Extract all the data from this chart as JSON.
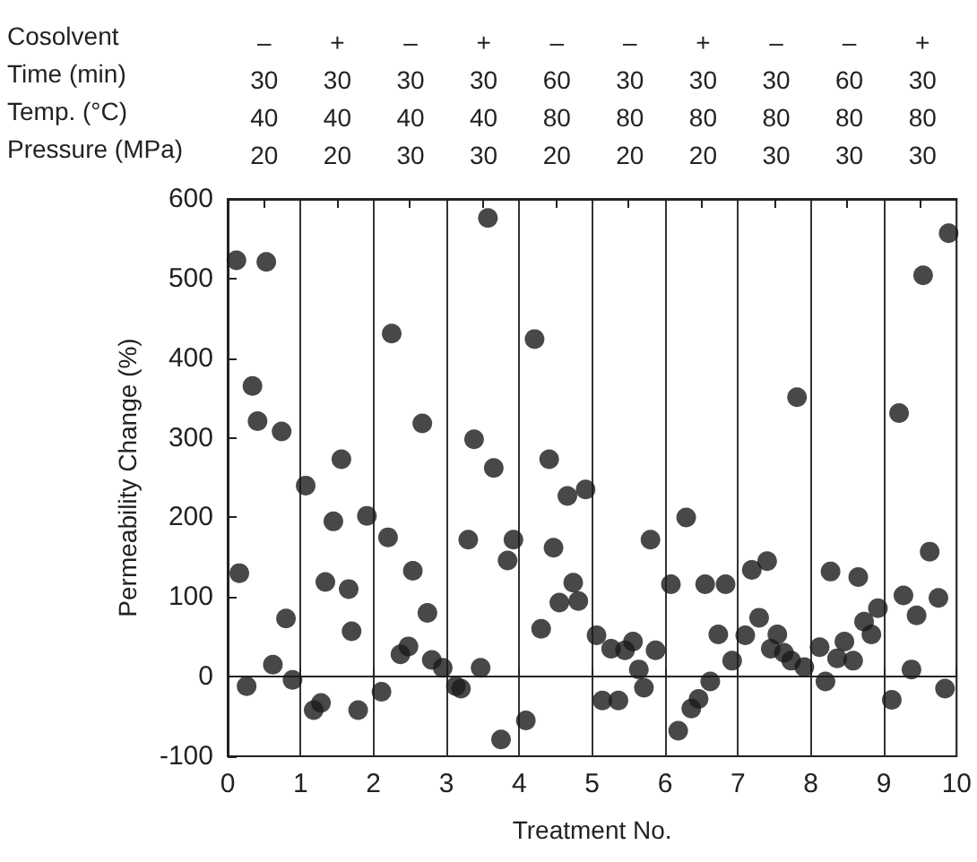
{
  "chart_data": {
    "type": "scatter",
    "xlabel": "Treatment No.",
    "ylabel": "Permeability Change (%)",
    "annotations": [
      "Cosolvent",
      "Time (min)",
      "Temp. (°C)",
      "Pressure (MPa)",
      {
        "text": "–\n30\n40\n20",
        "x": 0.5
      },
      {
        "text": "+\n30\n40\n20",
        "x": 1.5
      },
      {
        "text": "–\n30\n40\n30",
        "x": 2.5
      },
      {
        "text": "+\n30\n40\n30",
        "x": 3.5
      },
      {
        "text": "–\n60\n80\n20",
        "x": 4.5
      },
      {
        "text": "–\n30\n80\n20",
        "x": 5.5
      },
      {
        "text": "+\n30\n80\n20",
        "x": 6.5
      },
      {
        "text": "–\n30\n80\n30",
        "x": 7.5
      },
      {
        "text": "–\n60\n80\n30",
        "x": 8.5
      },
      {
        "text": "+\n30\n80\n30",
        "x": 9.5
      }
    ],
    "xlim": [
      0,
      10
    ],
    "xticks": [
      0,
      1,
      2,
      3,
      4,
      5,
      6,
      7,
      8,
      9,
      10
    ],
    "ylim": [
      -100,
      600
    ],
    "yticks": [
      -100,
      0,
      100,
      200,
      300,
      400,
      500,
      600
    ],
    "grid": "x",
    "marker": "circle",
    "series": [
      {
        "color": "#1a1a1a",
        "x": [
          0.12,
          0.53,
          0.16,
          0.34,
          0.41,
          0.74,
          0.26,
          0.62,
          0.8,
          0.89,
          1.07,
          1.18,
          1.28,
          1.34,
          1.45,
          1.56,
          1.66,
          1.7,
          1.79,
          1.91,
          2.11,
          2.2,
          2.25,
          2.37,
          2.48,
          2.54,
          2.67,
          2.74,
          2.8,
          2.95,
          3.13,
          3.2,
          3.3,
          3.38,
          3.47,
          3.57,
          3.65,
          3.75,
          3.84,
          3.92,
          4.09,
          4.21,
          4.3,
          4.41,
          4.47,
          4.55,
          4.66,
          4.74,
          4.81,
          4.91,
          5.06,
          5.14,
          5.26,
          5.36,
          5.45,
          5.56,
          5.64,
          5.71,
          5.8,
          5.87,
          6.08,
          6.18,
          6.29,
          6.36,
          6.46,
          6.55,
          6.62,
          6.73,
          6.83,
          6.92,
          7.1,
          7.19,
          7.29,
          7.4,
          7.45,
          7.54,
          7.63,
          7.73,
          7.81,
          7.91,
          8.12,
          8.2,
          8.27,
          8.36,
          8.46,
          8.58,
          8.65,
          8.73,
          8.83,
          8.92,
          9.11,
          9.21,
          9.27,
          9.38,
          9.45,
          9.54,
          9.63,
          9.75,
          9.84,
          9.89
        ],
        "values": [
          523,
          521,
          130,
          365,
          321,
          308,
          -12,
          15,
          73,
          -4,
          240,
          -42,
          -33,
          119,
          195,
          273,
          110,
          57,
          -42,
          202,
          -19,
          175,
          431,
          28,
          38,
          133,
          318,
          80,
          21,
          11,
          -12,
          -15,
          172,
          298,
          11,
          576,
          262,
          -79,
          146,
          172,
          -55,
          424,
          60,
          273,
          162,
          93,
          227,
          118,
          95,
          235,
          52,
          -30,
          35,
          -30,
          33,
          44,
          9,
          -14,
          172,
          33,
          116,
          -68,
          200,
          -40,
          -28,
          116,
          -6,
          53,
          116,
          20,
          52,
          134,
          74,
          145,
          35,
          53,
          30,
          20,
          351,
          12,
          37,
          -6,
          132,
          23,
          44,
          20,
          125,
          69,
          53,
          86,
          -29,
          331,
          102,
          9,
          77,
          504,
          157,
          99,
          -15,
          557
        ]
      }
    ]
  }
}
